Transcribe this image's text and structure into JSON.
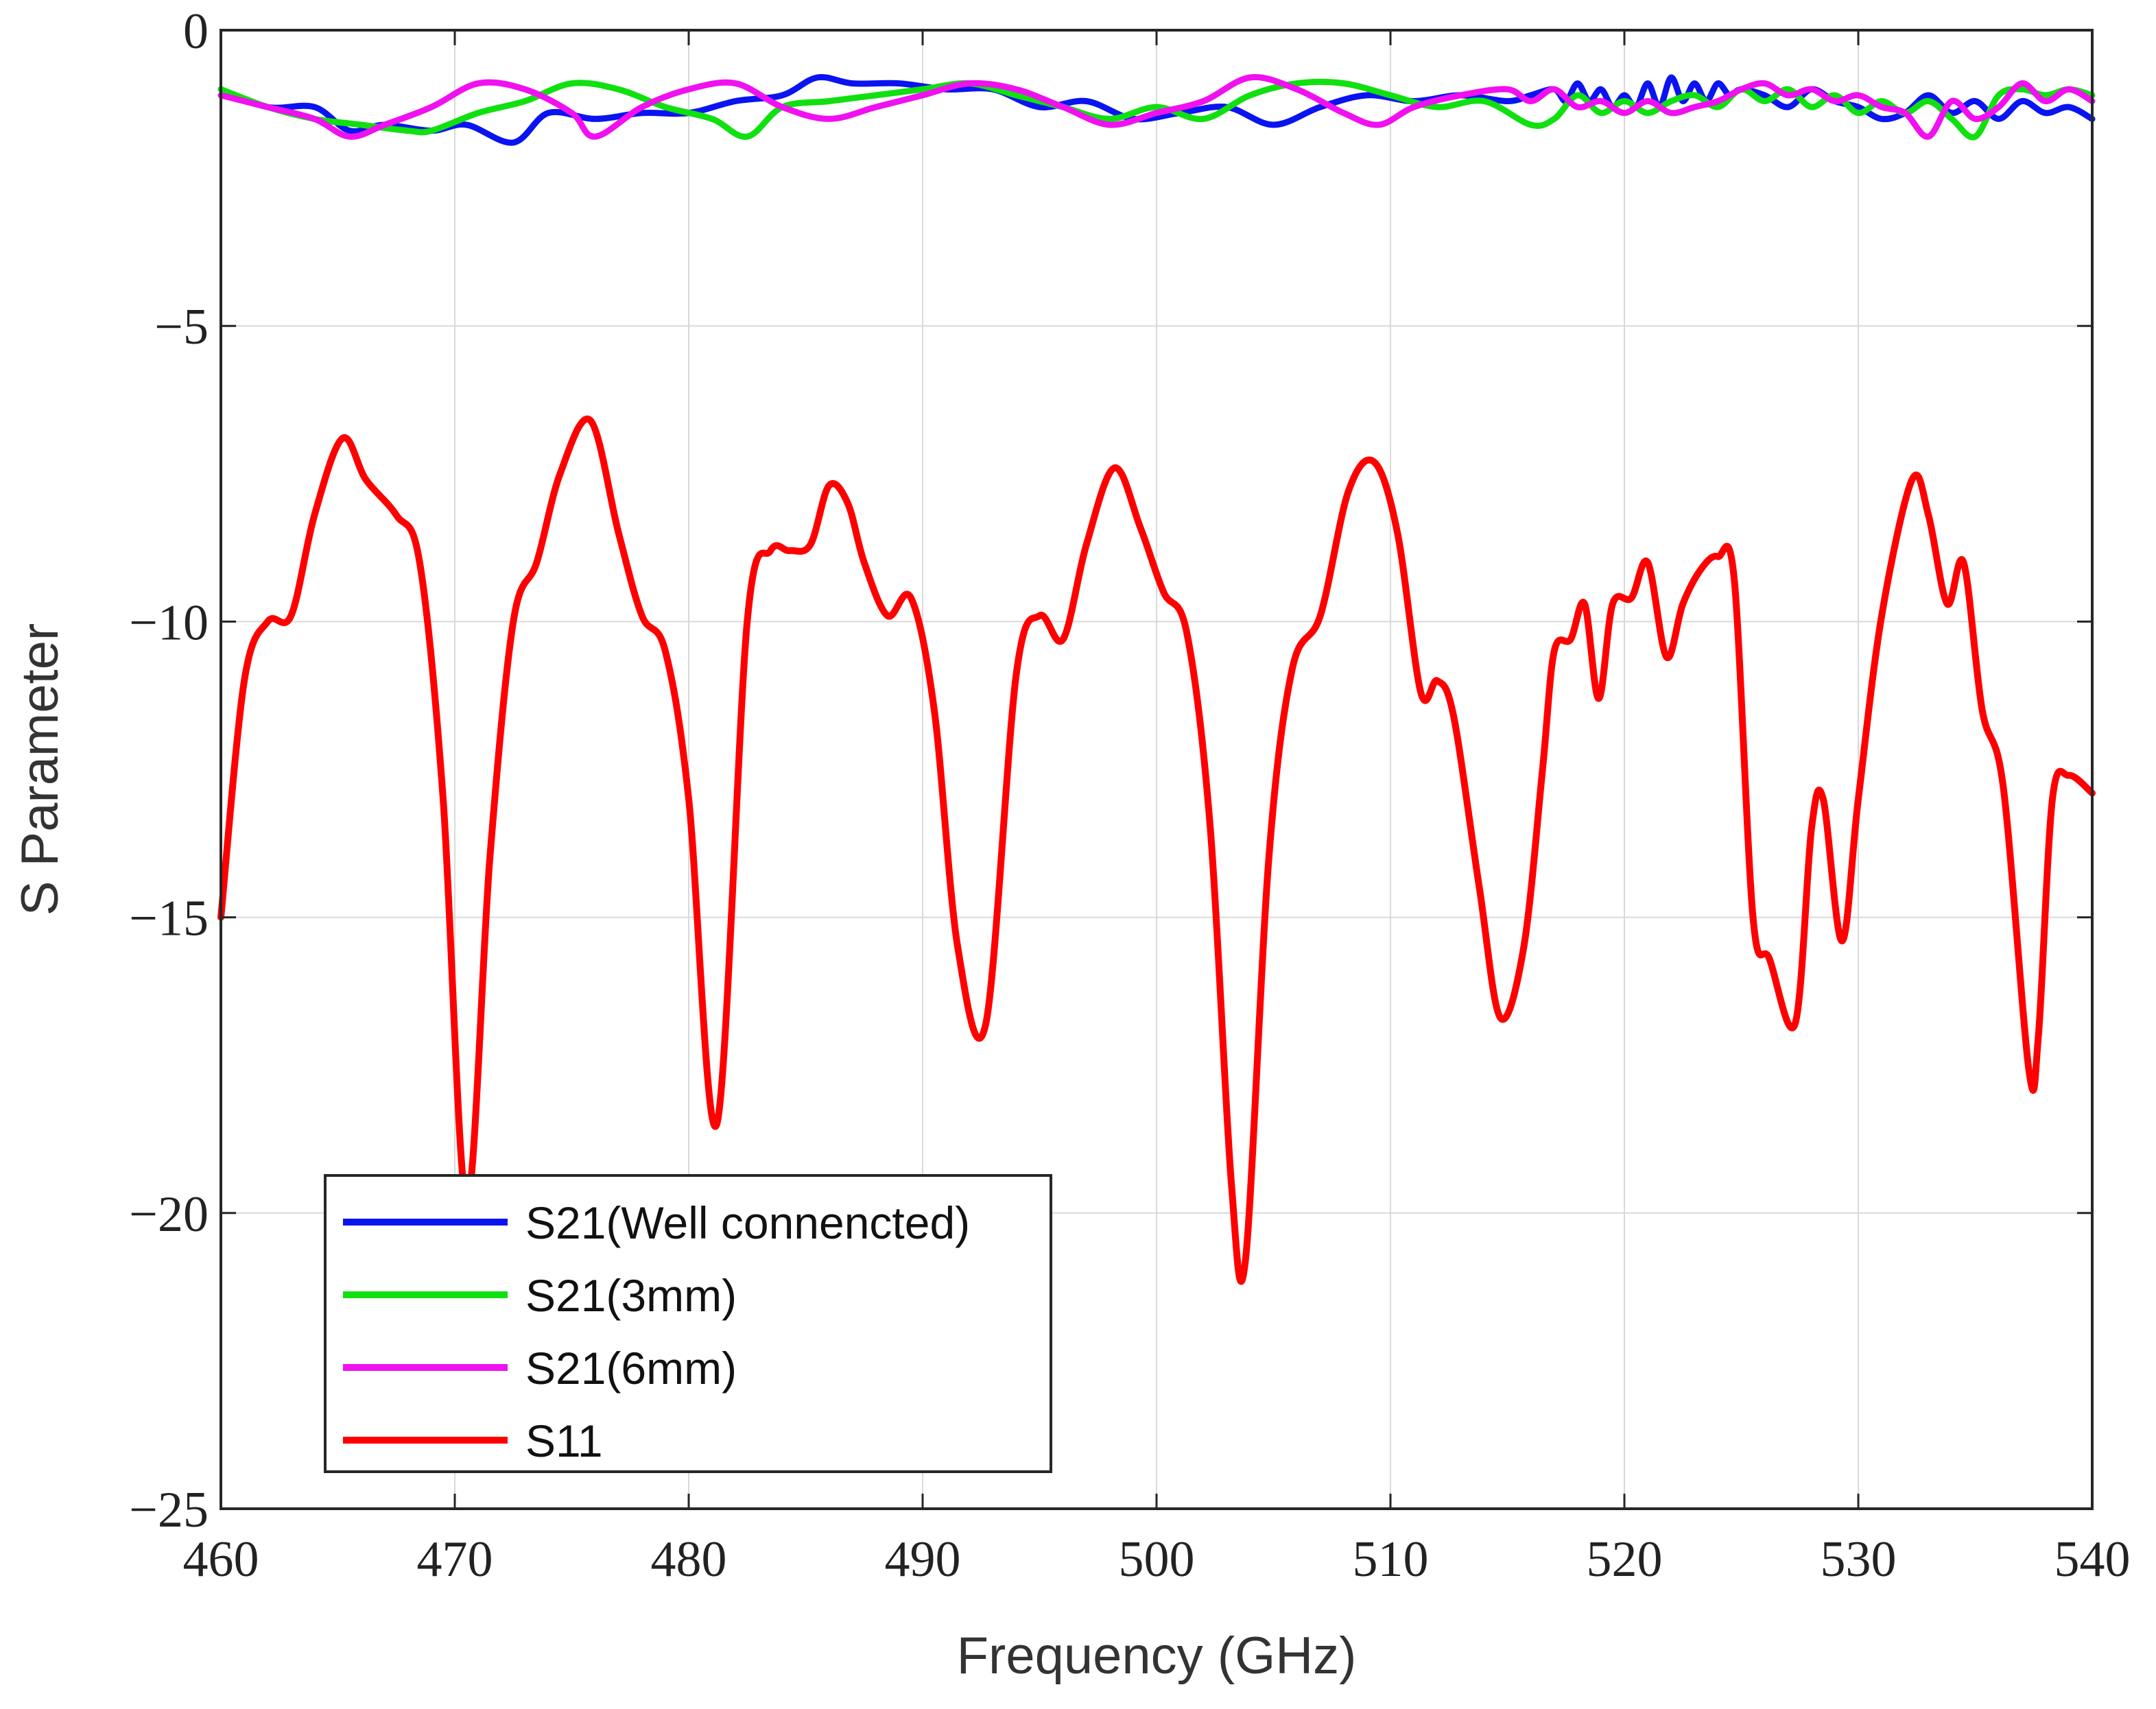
{
  "chart_data": {
    "type": "line",
    "title": "",
    "xlabel": "Frequency (GHz)",
    "ylabel": "S Parameter",
    "xlim": [
      460,
      540
    ],
    "ylim": [
      -25,
      0
    ],
    "xticks": [
      460,
      470,
      480,
      490,
      500,
      510,
      520,
      530,
      540
    ],
    "yticks": [
      0,
      -5,
      -10,
      -15,
      -20,
      -25
    ],
    "ytick_labels": [
      "0",
      "−5",
      "−10",
      "−15",
      "−20",
      "−25"
    ],
    "grid": true,
    "legend_position": "bottom-left",
    "series": [
      {
        "name": "S21(Well connencted)",
        "color": "#0a14f0",
        "x": [
          460,
          462,
          464,
          465.5,
          467,
          469,
          470.5,
          472.5,
          474,
          476,
          478,
          480,
          482,
          484,
          485.5,
          487,
          489,
          491,
          493,
          495,
          497,
          499,
          501,
          503,
          505,
          507,
          509,
          511,
          513,
          515,
          516,
          517,
          517.5,
          518,
          518.5,
          519,
          519.5,
          520,
          520.5,
          521,
          521.5,
          522,
          522.5,
          523,
          523.5,
          524,
          524.5,
          525,
          526,
          527,
          528,
          529,
          530,
          531,
          532,
          533,
          534,
          535,
          536,
          537,
          538,
          539,
          540
        ],
        "y": [
          -1.0,
          -1.3,
          -1.3,
          -1.7,
          -1.6,
          -1.7,
          -1.6,
          -1.9,
          -1.4,
          -1.5,
          -1.4,
          -1.4,
          -1.2,
          -1.1,
          -0.8,
          -0.9,
          -0.9,
          -1.0,
          -1.0,
          -1.3,
          -1.2,
          -1.5,
          -1.4,
          -1.3,
          -1.6,
          -1.3,
          -1.1,
          -1.2,
          -1.1,
          -1.2,
          -1.1,
          -1.0,
          -1.2,
          -0.9,
          -1.2,
          -1.0,
          -1.3,
          -1.1,
          -1.3,
          -0.9,
          -1.3,
          -0.8,
          -1.2,
          -0.9,
          -1.2,
          -0.9,
          -1.1,
          -1.0,
          -1.1,
          -1.3,
          -1.0,
          -1.2,
          -1.3,
          -1.5,
          -1.4,
          -1.1,
          -1.4,
          -1.2,
          -1.5,
          -1.2,
          -1.4,
          -1.3,
          -1.5
        ]
      },
      {
        "name": "S21(3mm)",
        "color": "#10e010",
        "x": [
          460,
          462,
          464,
          466,
          468,
          469,
          471,
          473,
          475,
          477,
          479,
          481,
          482.5,
          484,
          486,
          488,
          490,
          492,
          494,
          496,
          498,
          500,
          502,
          504,
          506,
          508,
          510,
          512,
          514,
          516,
          517,
          518,
          519,
          520,
          521,
          522,
          523,
          524,
          525,
          526,
          527,
          528,
          529,
          530,
          531,
          532,
          533,
          534,
          535,
          536,
          537,
          538,
          539,
          540
        ],
        "y": [
          -1.0,
          -1.3,
          -1.5,
          -1.6,
          -1.7,
          -1.7,
          -1.4,
          -1.2,
          -0.9,
          -1.0,
          -1.3,
          -1.5,
          -1.8,
          -1.3,
          -1.2,
          -1.1,
          -1.0,
          -0.9,
          -1.1,
          -1.3,
          -1.5,
          -1.3,
          -1.5,
          -1.1,
          -0.9,
          -0.9,
          -1.1,
          -1.3,
          -1.2,
          -1.6,
          -1.5,
          -1.1,
          -1.4,
          -1.2,
          -1.4,
          -1.2,
          -1.1,
          -1.3,
          -1.0,
          -1.2,
          -1.0,
          -1.3,
          -1.1,
          -1.4,
          -1.2,
          -1.4,
          -1.2,
          -1.5,
          -1.8,
          -1.1,
          -1.0,
          -1.1,
          -1.0,
          -1.1
        ]
      },
      {
        "name": "S21(6mm)",
        "color": "#f010f0",
        "x": [
          460,
          462,
          464,
          465.5,
          467,
          469,
          471,
          473,
          475,
          476,
          478,
          480,
          482,
          484,
          486,
          488,
          490,
          492,
          494,
          496,
          498,
          500,
          502,
          504,
          506,
          508,
          509.5,
          511,
          513,
          515,
          516,
          517,
          518,
          519,
          520,
          521,
          522,
          523,
          524,
          525,
          526,
          527,
          528,
          529,
          530,
          531,
          532,
          533,
          534,
          535,
          536,
          537,
          538,
          539,
          540
        ],
        "y": [
          -1.1,
          -1.3,
          -1.5,
          -1.8,
          -1.6,
          -1.3,
          -0.9,
          -1.0,
          -1.4,
          -1.8,
          -1.3,
          -1.0,
          -0.9,
          -1.3,
          -1.5,
          -1.3,
          -1.1,
          -0.9,
          -1.0,
          -1.3,
          -1.6,
          -1.4,
          -1.2,
          -0.8,
          -1.0,
          -1.4,
          -1.6,
          -1.3,
          -1.1,
          -1.0,
          -1.2,
          -1.0,
          -1.3,
          -1.2,
          -1.4,
          -1.2,
          -1.4,
          -1.3,
          -1.2,
          -1.0,
          -0.9,
          -1.1,
          -1.0,
          -1.2,
          -1.1,
          -1.3,
          -1.4,
          -1.8,
          -1.2,
          -1.5,
          -1.3,
          -0.9,
          -1.2,
          -1.0,
          -1.2
        ]
      },
      {
        "name": "S11",
        "color": "#ff0000",
        "x": [
          460,
          461,
          462,
          463,
          464,
          465.2,
          466.2,
          467.5,
          468.5,
          469.5,
          470.5,
          471.5,
          472.5,
          473.5,
          474.5,
          475.8,
          477,
          478,
          479,
          480,
          481.2,
          482.5,
          483.5,
          484.3,
          485.2,
          486,
          486.8,
          487.5,
          488.5,
          489.5,
          490.5,
          491.5,
          492.7,
          494,
          495,
          496,
          497,
          498.2,
          499.3,
          500.3,
          501.3,
          502.3,
          503.2,
          503.8,
          504.8,
          505.8,
          507,
          508.2,
          509.3,
          510.3,
          511.3,
          512,
          512.7,
          513.8,
          514.7,
          515.7,
          516.5,
          517,
          517.7,
          518.3,
          518.9,
          519.5,
          520.3,
          521,
          521.8,
          522.5,
          523.3,
          524,
          524.7,
          525.5,
          526.2,
          527.3,
          528,
          528.5,
          529.3,
          530,
          531,
          532.3,
          533,
          533.8,
          534.5,
          535.3,
          536.2,
          537.3,
          537.7,
          538.3,
          539,
          540
        ],
        "y": [
          -15.0,
          -11.0,
          -10.0,
          -9.9,
          -8.2,
          -6.9,
          -7.6,
          -8.2,
          -9.0,
          -13.0,
          -19.8,
          -14.0,
          -10.0,
          -9.0,
          -7.5,
          -6.6,
          -8.5,
          -9.9,
          -10.5,
          -13.0,
          -18.5,
          -10.0,
          -8.8,
          -8.8,
          -8.7,
          -7.7,
          -8.0,
          -9.0,
          -9.9,
          -9.6,
          -11.5,
          -15.5,
          -16.8,
          -10.9,
          -9.9,
          -10.3,
          -8.7,
          -7.4,
          -8.4,
          -9.5,
          -10.2,
          -13.5,
          -19.5,
          -20.8,
          -14.0,
          -10.8,
          -9.9,
          -7.8,
          -7.3,
          -8.5,
          -11.2,
          -11.0,
          -11.6,
          -14.5,
          -16.7,
          -15.5,
          -12.5,
          -10.5,
          -10.3,
          -9.7,
          -11.3,
          -9.7,
          -9.6,
          -9.0,
          -10.6,
          -9.7,
          -9.1,
          -8.9,
          -9.3,
          -15.0,
          -15.7,
          -16.8,
          -13.5,
          -13.0,
          -15.4,
          -13.0,
          -9.9,
          -7.6,
          -8.2,
          -9.7,
          -9.0,
          -11.5,
          -12.8,
          -17.6,
          -17.0,
          -13.0,
          -12.6,
          -12.9
        ]
      }
    ]
  }
}
